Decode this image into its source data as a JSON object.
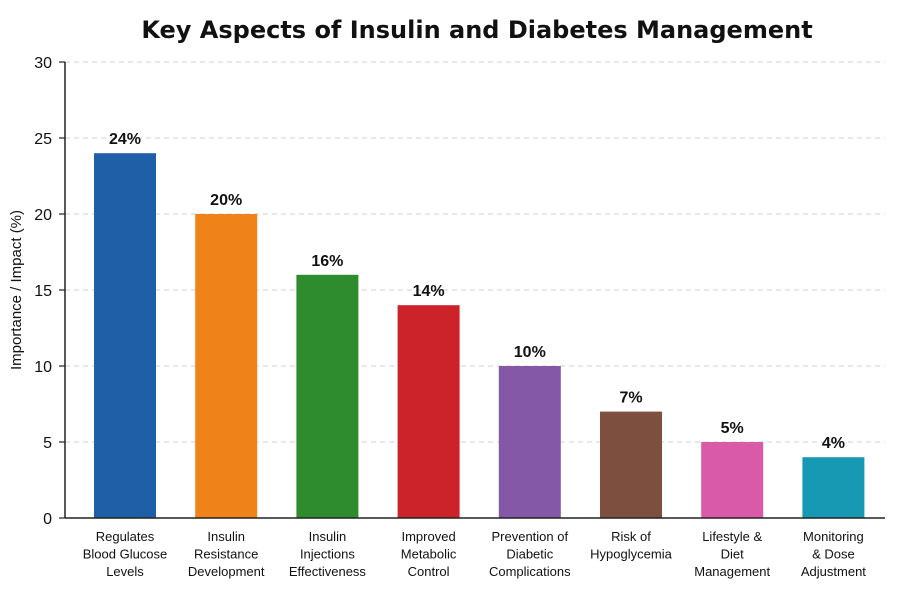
{
  "chart_data": {
    "type": "bar",
    "title": "Key Aspects of Insulin and Diabetes Management",
    "xlabel": "",
    "ylabel": "Importance / Impact (%)",
    "ylim": [
      0,
      30
    ],
    "yticks": [
      0,
      5,
      10,
      15,
      20,
      25,
      30
    ],
    "grid": true,
    "categories": [
      "Regulates Blood Glucose Levels",
      "Insulin Resistance Development",
      "Insulin Injections Effectiveness",
      "Improved Metabolic Control",
      "Prevention of Diabetic Complications",
      "Risk of Hypoglycemia",
      "Lifestyle & Diet Management",
      "Monitoring & Dose Adjustment"
    ],
    "category_lines": [
      [
        "Regulates",
        "Blood Glucose",
        "Levels"
      ],
      [
        "Insulin",
        "Resistance",
        "Development"
      ],
      [
        "Insulin",
        "Injections",
        "Effectiveness"
      ],
      [
        "Improved",
        "Metabolic",
        "Control"
      ],
      [
        "Prevention of",
        "Diabetic",
        "Complications"
      ],
      [
        "Risk of",
        "Hypoglycemia"
      ],
      [
        "Lifestyle &",
        "Diet",
        "Management"
      ],
      [
        "Monitoring",
        "& Dose",
        "Adjustment"
      ]
    ],
    "values": [
      24,
      20,
      16,
      14,
      10,
      7,
      5,
      4
    ],
    "data_labels": [
      "24%",
      "20%",
      "16%",
      "14%",
      "10%",
      "7%",
      "5%",
      "4%"
    ],
    "colors": [
      "#1f5fa8",
      "#f0821a",
      "#2e8b2e",
      "#cc2229",
      "#8557a7",
      "#7c4f3e",
      "#d95aa8",
      "#1899b3"
    ]
  }
}
